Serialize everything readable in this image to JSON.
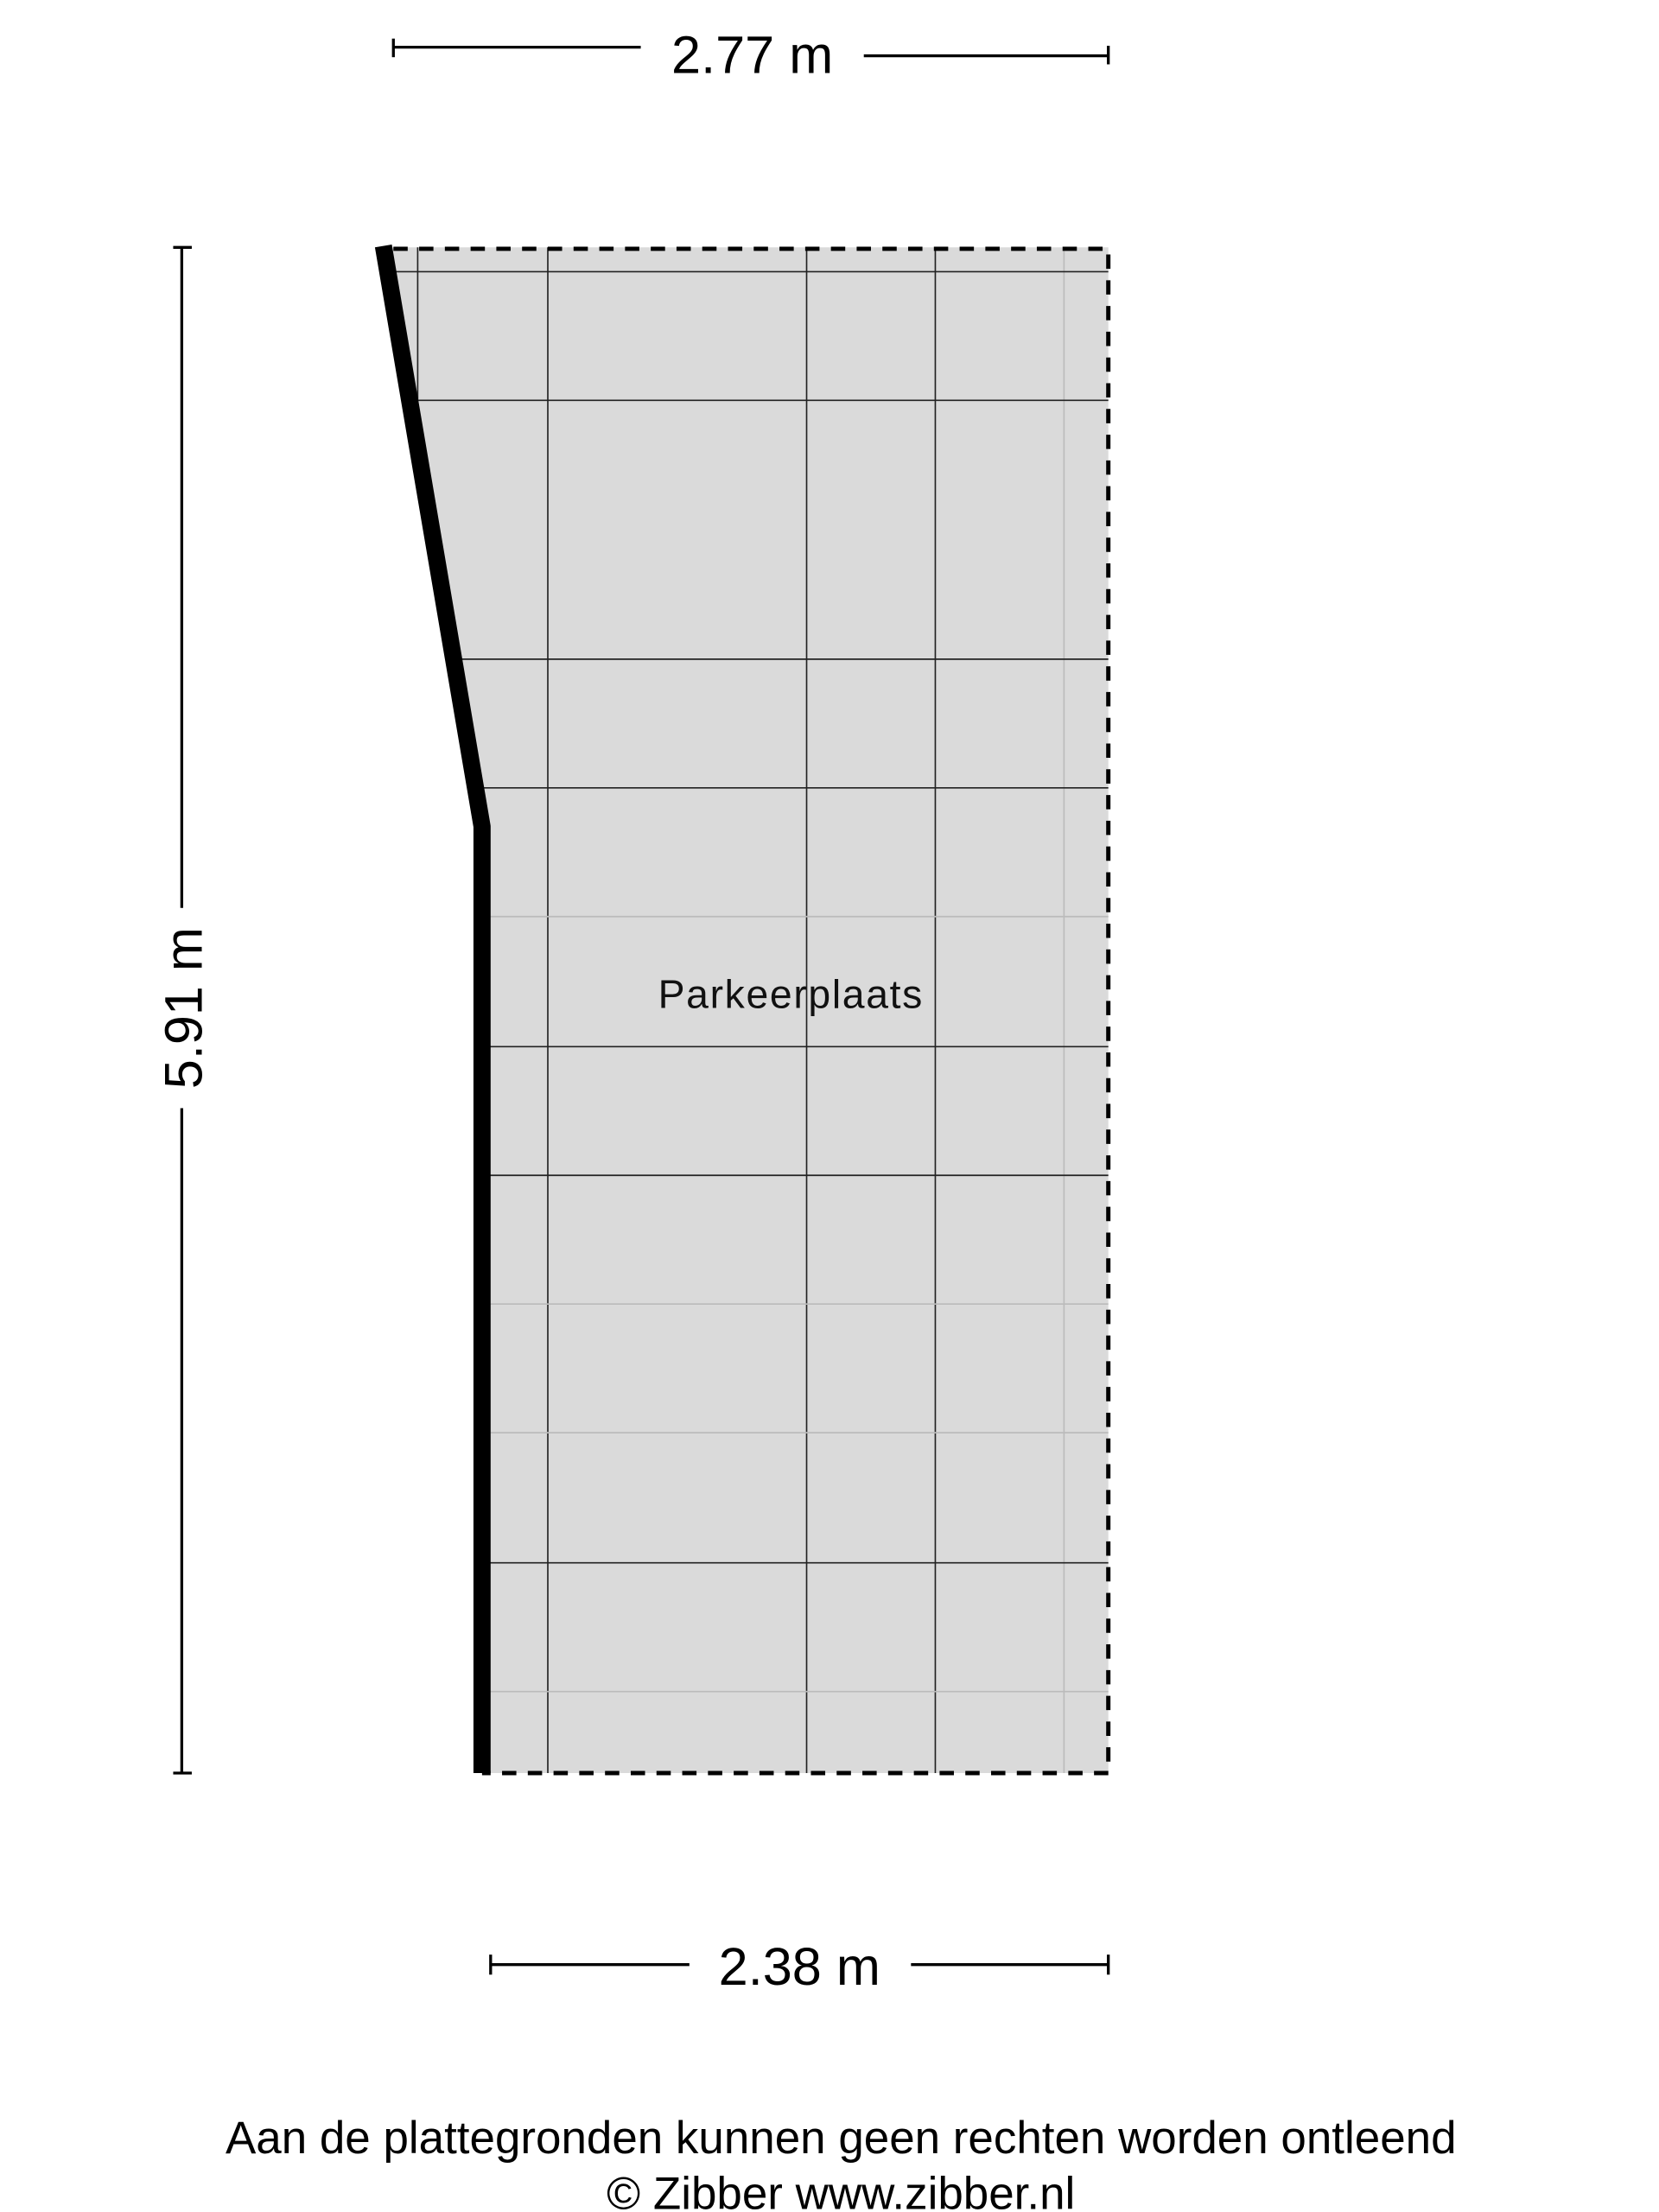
{
  "dimensions": {
    "top_width": "2.77 m",
    "left_height": "5.91 m",
    "bottom_width": "2.38 m"
  },
  "rooms": [
    {
      "label": "Parkeerplaats",
      "fill_color": "#dadada"
    }
  ],
  "footer": {
    "disclaimer": "Aan de plattegronden kunnen geen rechten worden ontleend",
    "copyright": "© Zibber www.zibber.nl"
  },
  "colors": {
    "wall": "#000000",
    "grid": "#222222",
    "background": "#ffffff"
  }
}
